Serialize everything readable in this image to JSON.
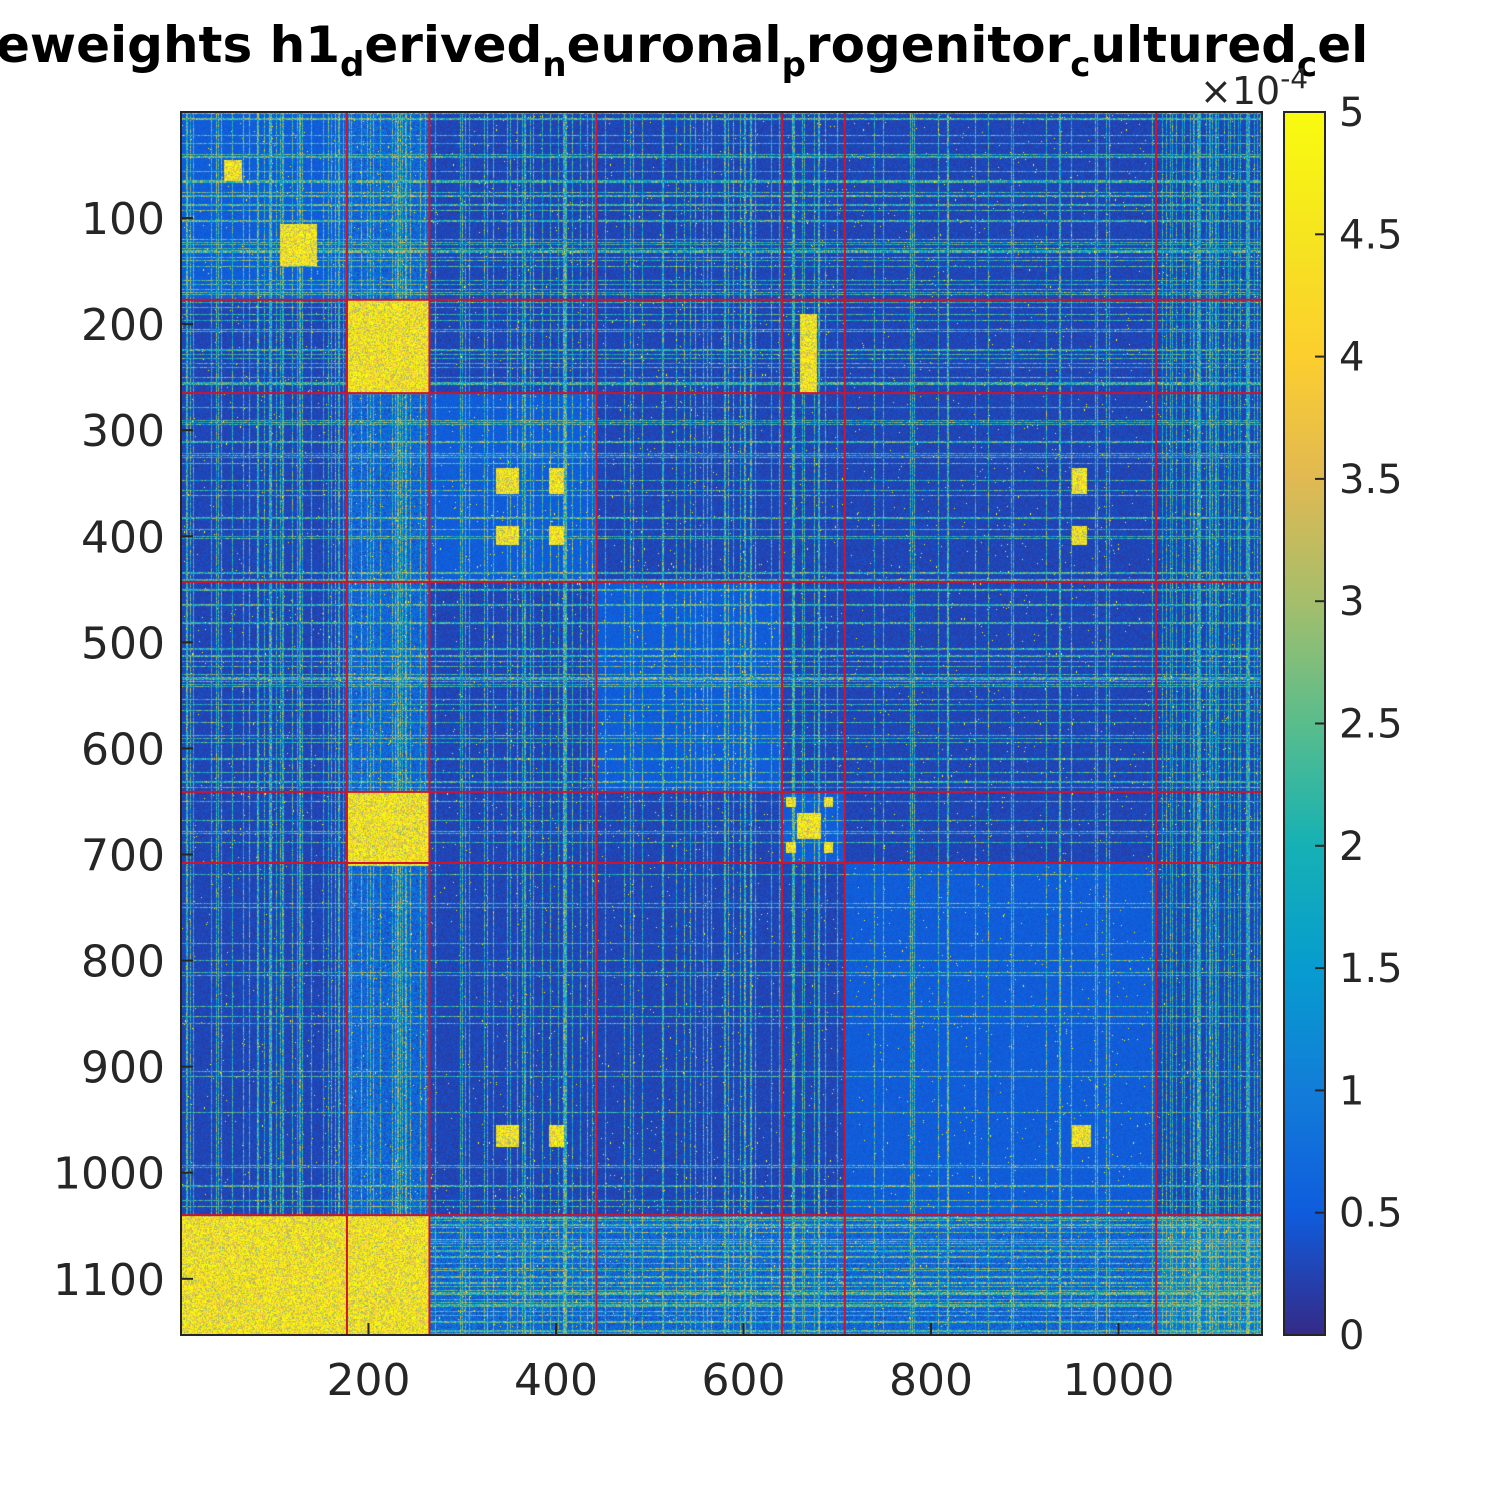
{
  "chart_data": {
    "type": "heatmap",
    "title": {
      "segments": [
        {
          "text": "eweights h1",
          "sub": false
        },
        {
          "text": "d",
          "sub": true
        },
        {
          "text": "erived",
          "sub": false
        },
        {
          "text": "n",
          "sub": true
        },
        {
          "text": "euronal",
          "sub": false
        },
        {
          "text": "p",
          "sub": true
        },
        {
          "text": "rogenitor",
          "sub": false
        },
        {
          "text": "c",
          "sub": true
        },
        {
          "text": "ultured",
          "sub": false
        },
        {
          "text": "c",
          "sub": true
        },
        {
          "text": "el",
          "sub": false
        }
      ]
    },
    "matrix_size": 1153,
    "x_ticks": [
      {
        "value": 200,
        "label": "200"
      },
      {
        "value": 400,
        "label": "400"
      },
      {
        "value": 600,
        "label": "600"
      },
      {
        "value": 800,
        "label": "800"
      },
      {
        "value": 1000,
        "label": "1000"
      }
    ],
    "y_ticks": [
      {
        "value": 100,
        "label": "100"
      },
      {
        "value": 200,
        "label": "200"
      },
      {
        "value": 300,
        "label": "300"
      },
      {
        "value": 400,
        "label": "400"
      },
      {
        "value": 500,
        "label": "500"
      },
      {
        "value": 600,
        "label": "600"
      },
      {
        "value": 700,
        "label": "700"
      },
      {
        "value": 800,
        "label": "800"
      },
      {
        "value": 900,
        "label": "900"
      },
      {
        "value": 1000,
        "label": "1000"
      },
      {
        "value": 1100,
        "label": "1100"
      }
    ],
    "colorbar": {
      "min": 0,
      "max": 5,
      "exponent_label": {
        "base": "×10",
        "exp": "-4"
      },
      "ticks": [
        {
          "value": 0,
          "label": "0"
        },
        {
          "value": 0.5,
          "label": "0.5"
        },
        {
          "value": 1,
          "label": "1"
        },
        {
          "value": 1.5,
          "label": "1.5"
        },
        {
          "value": 2,
          "label": "2"
        },
        {
          "value": 2.5,
          "label": "2.5"
        },
        {
          "value": 3,
          "label": "3"
        },
        {
          "value": 3.5,
          "label": "3.5"
        },
        {
          "value": 4,
          "label": "4"
        },
        {
          "value": 4.5,
          "label": "4.5"
        },
        {
          "value": 5,
          "label": "5"
        }
      ]
    },
    "cluster_boundaries": [
      177,
      265,
      443,
      641,
      708,
      1040
    ],
    "colormap": "parula",
    "boundary_color": "#d0142c",
    "high_blocks": [
      {
        "r0": 177,
        "r1": 265,
        "c0": 177,
        "c1": 265
      },
      {
        "r0": 105,
        "r1": 145,
        "c0": 105,
        "c1": 145
      },
      {
        "r0": 45,
        "r1": 65,
        "c0": 45,
        "c1": 65
      },
      {
        "r0": 335,
        "r1": 360,
        "c0": 335,
        "c1": 360
      },
      {
        "r0": 390,
        "r1": 408,
        "c0": 335,
        "c1": 360
      },
      {
        "r0": 335,
        "r1": 360,
        "c0": 392,
        "c1": 408
      },
      {
        "r0": 390,
        "r1": 408,
        "c0": 392,
        "c1": 408
      },
      {
        "r0": 335,
        "r1": 360,
        "c0": 950,
        "c1": 966
      },
      {
        "r0": 390,
        "r1": 408,
        "c0": 950,
        "c1": 966
      },
      {
        "r0": 955,
        "r1": 975,
        "c0": 950,
        "c1": 970
      },
      {
        "r0": 955,
        "r1": 975,
        "c0": 392,
        "c1": 408
      },
      {
        "r0": 955,
        "r1": 975,
        "c0": 335,
        "c1": 360
      },
      {
        "r0": 660,
        "r1": 685,
        "c0": 657,
        "c1": 682
      },
      {
        "r0": 645,
        "r1": 655,
        "c0": 645,
        "c1": 655
      },
      {
        "r0": 645,
        "r1": 655,
        "c0": 685,
        "c1": 695
      },
      {
        "r0": 688,
        "r1": 698,
        "c0": 645,
        "c1": 655
      },
      {
        "r0": 688,
        "r1": 698,
        "c0": 685,
        "c1": 695
      },
      {
        "r0": 190,
        "r1": 265,
        "c0": 660,
        "c1": 678
      },
      {
        "r0": 640,
        "r1": 710,
        "c0": 177,
        "c1": 265
      },
      {
        "r0": 1040,
        "r1": 1153,
        "c0": 0,
        "c1": 265
      }
    ],
    "xlabel": "",
    "ylabel": ""
  }
}
